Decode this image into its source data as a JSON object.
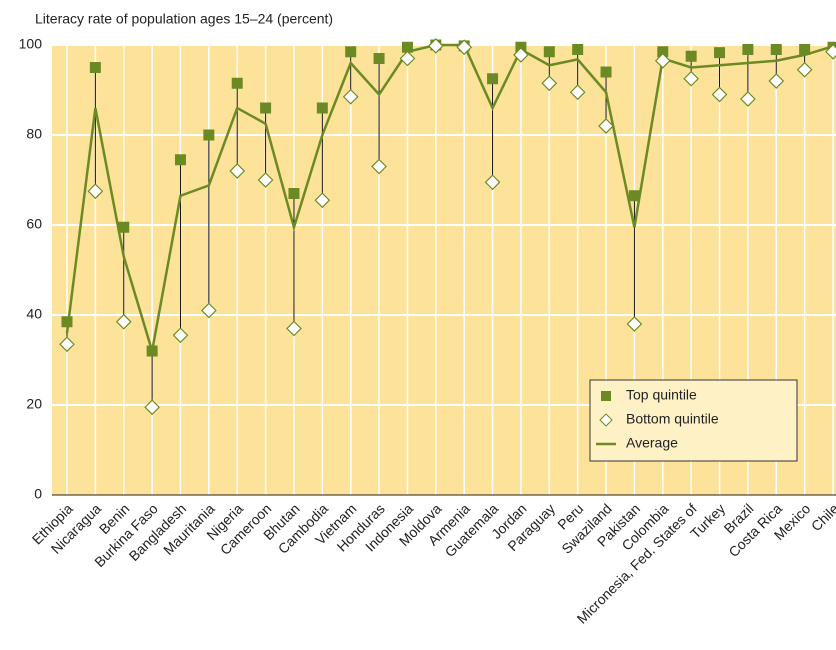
{
  "chart_data": {
    "type": "line",
    "title": "Literacy rate of population ages 15–24 (percent)",
    "categories": [
      "Ethiopia",
      "Nicaragua",
      "Benin",
      "Burkina Faso",
      "Bangladesh",
      "Mauritania",
      "Nigeria",
      "Cameroon",
      "Bhutan",
      "Cambodia",
      "Vietnam",
      "Honduras",
      "Indonesia",
      "Moldova",
      "Armenia",
      "Guatemala",
      "Jordan",
      "Paraguay",
      "Peru",
      "Swaziland",
      "Pakistan",
      "Colombia",
      "Micronesia, Fed. States of",
      "Turkey",
      "Brazil",
      "Costa Rica",
      "Mexico",
      "Chile"
    ],
    "series": [
      {
        "name": "Top quintile",
        "color": "#6b8a23",
        "marker": "square",
        "values": [
          38.5,
          95,
          59.5,
          32,
          74.5,
          80,
          91.5,
          86,
          67,
          86,
          98.5,
          97,
          99.5,
          100,
          99.8,
          92.5,
          99.5,
          98.5,
          99,
          94,
          66.5,
          98.5,
          97.5,
          98.3,
          99,
          99,
          99,
          99.5
        ]
      },
      {
        "name": "Bottom quintile",
        "color": "#6b8a23",
        "marker": "diamond",
        "values": [
          33.5,
          67.5,
          38.5,
          19.5,
          35.5,
          41,
          72,
          70,
          37,
          65.5,
          88.5,
          73,
          97,
          99.8,
          99.5,
          69.5,
          97.8,
          91.5,
          89.5,
          82,
          38,
          96.5,
          92.5,
          89,
          88,
          92,
          94.5,
          98.5
        ]
      },
      {
        "name": "Average",
        "color": "#6b8a23",
        "marker": "line",
        "values": [
          36,
          86,
          53,
          32,
          66.5,
          68.8,
          86,
          82.5,
          59.5,
          80,
          96,
          89,
          98.5,
          100,
          100,
          86,
          99,
          95.5,
          96.8,
          89.5,
          59.5,
          97,
          95,
          95.5,
          96,
          96.5,
          97.8,
          99.7
        ]
      }
    ],
    "ylim": [
      0,
      100
    ],
    "yticks": [
      0,
      20,
      40,
      60,
      80,
      100
    ],
    "grid": true,
    "legend": "lower right",
    "background": "#fde29a"
  }
}
